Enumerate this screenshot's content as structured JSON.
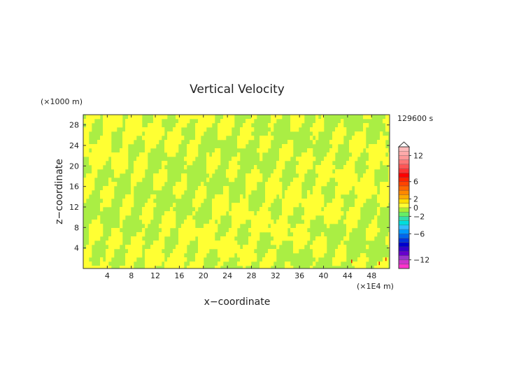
{
  "chart_data": {
    "type": "heatmap",
    "title": "Vertical Velocity",
    "xlabel": "x−coordinate",
    "ylabel": "z−coordinate",
    "x_unit": "(×1E4 m)",
    "y_unit": "(×1000 m)",
    "time_label": "129600 s",
    "xlim": [
      0,
      51
    ],
    "ylim": [
      0,
      30
    ],
    "x_ticks": [
      4,
      8,
      12,
      16,
      20,
      24,
      28,
      32,
      36,
      40,
      44,
      48
    ],
    "y_ticks": [
      4,
      8,
      12,
      16,
      20,
      24,
      28
    ],
    "field_pattern": "fine-scale alternating yellow (slightly positive) and yellow-green (near zero) stripes filling the domain; a few tiny red specks near x=44-50, z<2",
    "colorbar": {
      "levels": [
        -14,
        -13,
        -12,
        -11,
        -10,
        -9,
        -8,
        -7,
        -6,
        -5,
        -4,
        -3,
        -2,
        -1,
        0,
        1,
        2,
        3,
        4,
        5,
        6,
        7,
        8,
        9,
        10,
        11,
        12,
        13,
        14
      ],
      "colors": [
        "#ff33cc",
        "#cc33cc",
        "#9933cc",
        "#6600cc",
        "#3300cc",
        "#0000cc",
        "#0033dd",
        "#0066ee",
        "#0099ff",
        "#33bbff",
        "#00dddd",
        "#33ddaa",
        "#66ee66",
        "#aaee33",
        "#ffff33",
        "#ffdd00",
        "#ffaa00",
        "#ff8800",
        "#ff6600",
        "#ff4400",
        "#ff2200",
        "#ff0000",
        "#ff3333",
        "#ff5555",
        "#ff7777",
        "#ff9999",
        "#ffaaaa",
        "#ffbbbb"
      ],
      "tick_labels": [
        {
          "value": 12,
          "label": "12"
        },
        {
          "value": 6,
          "label": "6"
        },
        {
          "value": 2,
          "label": "2"
        },
        {
          "value": 0,
          "label": "0"
        },
        {
          "value": -2,
          "label": "−2"
        },
        {
          "value": -6,
          "label": "−6"
        },
        {
          "value": -12,
          "label": "−12"
        }
      ],
      "extend_top": true
    },
    "colors": {
      "background_field": "#aaee44",
      "positive_stripe": "#ffff33",
      "speck": "#dd2200"
    }
  }
}
